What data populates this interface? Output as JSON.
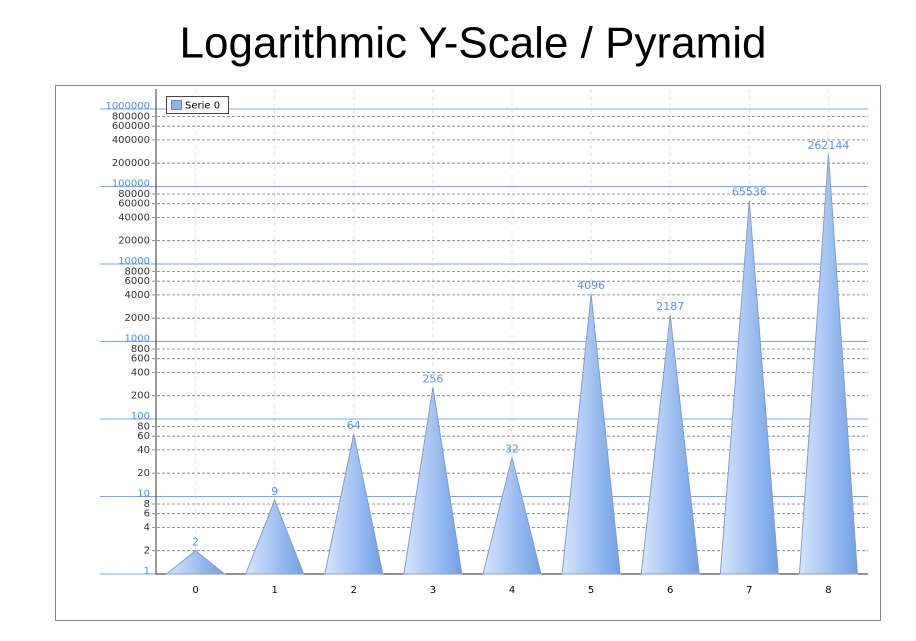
{
  "chart_data": {
    "type": "pyramid",
    "title": "Logarithmic Y-Scale / Pyramid",
    "categories": [
      "0",
      "1",
      "2",
      "3",
      "4",
      "5",
      "6",
      "7",
      "8"
    ],
    "series": [
      {
        "name": "Serie 0",
        "color": "#8fb4f2",
        "values": [
          2,
          9,
          64,
          256,
          32,
          4096,
          2187,
          65536,
          262144
        ]
      }
    ],
    "ylim": [
      1,
      1000000
    ],
    "log_y": true,
    "grid": true,
    "legend": "top-left",
    "yticks": [
      1,
      2,
      4,
      6,
      8,
      10,
      20,
      40,
      60,
      80,
      100,
      200,
      400,
      600,
      800,
      1000,
      2000,
      4000,
      6000,
      8000,
      10000,
      20000,
      40000,
      60000,
      80000,
      100000,
      200000,
      400000,
      600000,
      800000,
      1000000
    ]
  }
}
